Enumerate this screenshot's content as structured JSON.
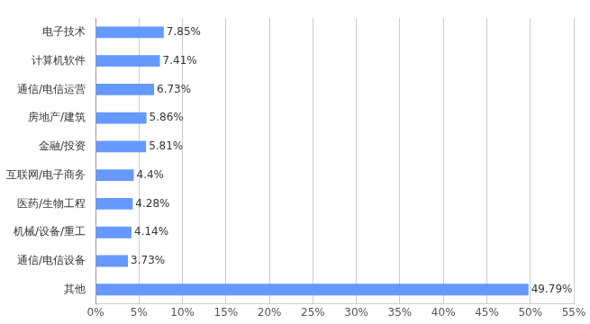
{
  "chart_data": {
    "type": "bar",
    "orientation": "horizontal",
    "categories": [
      "电子技术",
      "计算机软件",
      "通信/电信运营",
      "房地产/建筑",
      "金融/投资",
      "互联网/电子商务",
      "医药/生物工程",
      "机械/设备/重工",
      "通信/电信设备",
      "其他"
    ],
    "values": [
      7.85,
      7.41,
      6.73,
      5.86,
      5.81,
      4.4,
      4.28,
      4.14,
      3.73,
      49.79
    ],
    "value_labels": [
      "7.85%",
      "7.41%",
      "6.73%",
      "5.86%",
      "5.81%",
      "4.4%",
      "4.28%",
      "4.14%",
      "3.73%",
      "49.79%"
    ],
    "color": "#6699ff",
    "xlim": [
      0,
      55
    ],
    "xticks": [
      {
        "value": 0,
        "label": "0%"
      },
      {
        "value": 5,
        "label": "5%"
      },
      {
        "value": 10,
        "label": "10%"
      },
      {
        "value": 15,
        "label": "15%"
      },
      {
        "value": 20,
        "label": "20%"
      },
      {
        "value": 25,
        "label": "25%"
      },
      {
        "value": 30,
        "label": "30%"
      },
      {
        "value": 35,
        "label": "35%"
      },
      {
        "value": 40,
        "label": "40%"
      },
      {
        "value": 45,
        "label": "45%"
      },
      {
        "value": 50,
        "label": "50%"
      },
      {
        "value": 55,
        "label": "55%"
      }
    ],
    "grid": true,
    "data_labels": true
  }
}
